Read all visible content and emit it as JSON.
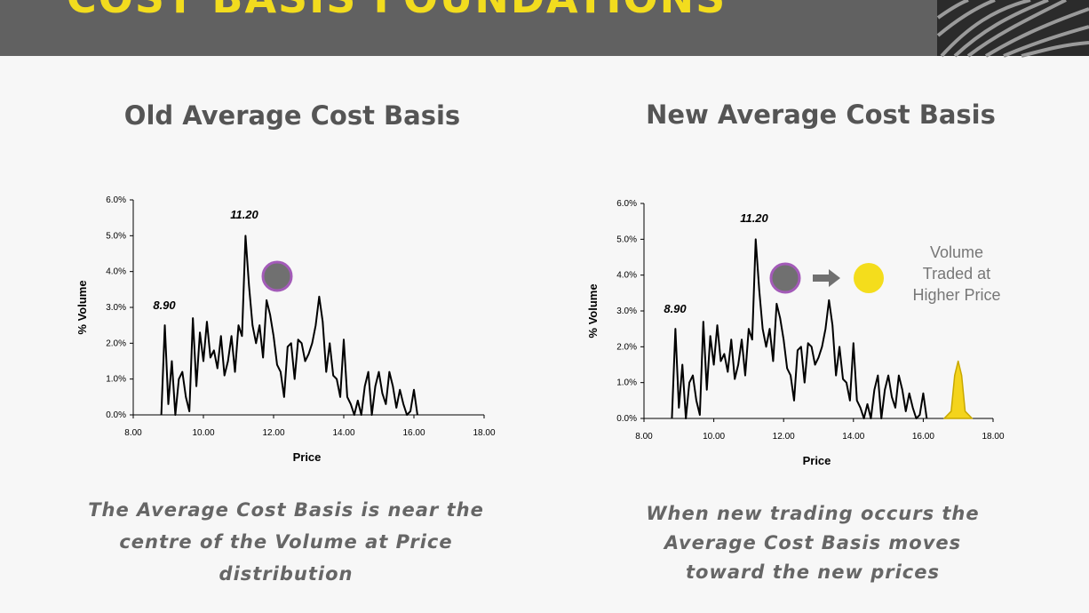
{
  "header": {
    "title": "COST BASIS FOUNDATIONS"
  },
  "chart_data": [
    {
      "type": "line",
      "title": "Old Average Cost Basis",
      "x_label": "Price",
      "y_label": "% Volume",
      "x": [
        8.8,
        8.9,
        9.0,
        9.1,
        9.2,
        9.3,
        9.4,
        9.5,
        9.6,
        9.7,
        9.8,
        9.9,
        10.0,
        10.1,
        10.2,
        10.3,
        10.4,
        10.5,
        10.6,
        10.7,
        10.8,
        10.9,
        11.0,
        11.1,
        11.2,
        11.3,
        11.4,
        11.5,
        11.6,
        11.7,
        11.8,
        11.9,
        12.0,
        12.1,
        12.2,
        12.3,
        12.4,
        12.5,
        12.6,
        12.7,
        12.8,
        12.9,
        13.0,
        13.1,
        13.2,
        13.3,
        13.4,
        13.5,
        13.6,
        13.7,
        13.8,
        13.9,
        14.0,
        14.1,
        14.2,
        14.3,
        14.4,
        14.5,
        14.6,
        14.7,
        14.8,
        14.9,
        15.0,
        15.1,
        15.2,
        15.3,
        15.4,
        15.5,
        15.6,
        15.7,
        15.8,
        15.9,
        16.0,
        16.1
      ],
      "series": [
        {
          "color": "#000000",
          "values": [
            0,
            2.5,
            0.3,
            1.5,
            0,
            1.0,
            1.2,
            0.5,
            0.1,
            2.7,
            0.8,
            2.3,
            1.5,
            2.6,
            1.6,
            1.8,
            1.3,
            2.2,
            1.1,
            1.5,
            2.2,
            1.2,
            2.5,
            2.2,
            5.0,
            3.6,
            2.5,
            2.0,
            2.5,
            1.6,
            3.2,
            2.8,
            2.2,
            1.4,
            1.2,
            0.5,
            1.9,
            2.0,
            1.0,
            2.1,
            2.0,
            1.5,
            1.7,
            2.0,
            2.5,
            3.3,
            2.6,
            1.2,
            2.0,
            1.1,
            1.0,
            0.5,
            2.1,
            0.5,
            0.3,
            0,
            0.4,
            0,
            0.8,
            1.2,
            0,
            0.8,
            1.2,
            0.6,
            0.3,
            1.2,
            0.8,
            0.2,
            0.7,
            0.3,
            0,
            0.1,
            0.7,
            0
          ]
        }
      ],
      "xlim": [
        8,
        18
      ],
      "ylim": [
        0,
        6
      ],
      "xticks": [
        {
          "value": 8,
          "label": "8.00"
        },
        {
          "value": 10,
          "label": "10.00"
        },
        {
          "value": 12,
          "label": "12.00"
        },
        {
          "value": 14,
          "label": "14.00"
        },
        {
          "value": 16,
          "label": "16.00"
        },
        {
          "value": 18,
          "label": "18.00"
        }
      ],
      "yticks": [
        {
          "value": 0,
          "label": "0.0%"
        },
        {
          "value": 1,
          "label": "1.0%"
        },
        {
          "value": 2,
          "label": "2.0%"
        },
        {
          "value": 3,
          "label": "3.0%"
        },
        {
          "value": 4,
          "label": "4.0%"
        },
        {
          "value": 5,
          "label": "5.0%"
        },
        {
          "value": 6,
          "label": "6.0%"
        }
      ],
      "annotations": [
        "11.20",
        "8.90"
      ],
      "caption": [
        "The Average Cost Basis is near the",
        "centre of the Volume at Price",
        "distribution"
      ]
    },
    {
      "type": "line",
      "title": "New Average Cost Basis",
      "x_label": "Price",
      "y_label": "% Volume",
      "x": [
        8.8,
        8.9,
        9.0,
        9.1,
        9.2,
        9.3,
        9.4,
        9.5,
        9.6,
        9.7,
        9.8,
        9.9,
        10.0,
        10.1,
        10.2,
        10.3,
        10.4,
        10.5,
        10.6,
        10.7,
        10.8,
        10.9,
        11.0,
        11.1,
        11.2,
        11.3,
        11.4,
        11.5,
        11.6,
        11.7,
        11.8,
        11.9,
        12.0,
        12.1,
        12.2,
        12.3,
        12.4,
        12.5,
        12.6,
        12.7,
        12.8,
        12.9,
        13.0,
        13.1,
        13.2,
        13.3,
        13.4,
        13.5,
        13.6,
        13.7,
        13.8,
        13.9,
        14.0,
        14.1,
        14.2,
        14.3,
        14.4,
        14.5,
        14.6,
        14.7,
        14.8,
        14.9,
        15.0,
        15.1,
        15.2,
        15.3,
        15.4,
        15.5,
        15.6,
        15.7,
        15.8,
        15.9,
        16.0,
        16.1
      ],
      "series": [
        {
          "color": "#000000",
          "values": [
            0,
            2.5,
            0.3,
            1.5,
            0,
            1.0,
            1.2,
            0.5,
            0.1,
            2.7,
            0.8,
            2.3,
            1.5,
            2.6,
            1.6,
            1.8,
            1.3,
            2.2,
            1.1,
            1.5,
            2.2,
            1.2,
            2.5,
            2.2,
            5.0,
            3.6,
            2.5,
            2.0,
            2.5,
            1.6,
            3.2,
            2.8,
            2.2,
            1.4,
            1.2,
            0.5,
            1.9,
            2.0,
            1.0,
            2.1,
            2.0,
            1.5,
            1.7,
            2.0,
            2.5,
            3.3,
            2.6,
            1.2,
            2.0,
            1.1,
            1.0,
            0.5,
            2.1,
            0.5,
            0.3,
            0,
            0.4,
            0,
            0.8,
            1.2,
            0,
            0.8,
            1.2,
            0.6,
            0.3,
            1.2,
            0.8,
            0.2,
            0.7,
            0.3,
            0,
            0.1,
            0.7,
            0
          ]
        },
        {
          "color": "#f4d41c",
          "x": [
            16.6,
            16.8,
            16.9,
            17.0,
            17.1,
            17.2,
            17.4
          ],
          "values": [
            0,
            0.2,
            1.2,
            1.6,
            1.2,
            0.2,
            0
          ]
        }
      ],
      "xlim": [
        8,
        18
      ],
      "ylim": [
        0,
        6
      ],
      "xticks": [
        {
          "value": 8,
          "label": "8.00"
        },
        {
          "value": 10,
          "label": "10.00"
        },
        {
          "value": 12,
          "label": "12.00"
        },
        {
          "value": 14,
          "label": "14.00"
        },
        {
          "value": 16,
          "label": "16.00"
        },
        {
          "value": 18,
          "label": "18.00"
        }
      ],
      "yticks": [
        {
          "value": 0,
          "label": "0.0%"
        },
        {
          "value": 1,
          "label": "1.0%"
        },
        {
          "value": 2,
          "label": "2.0%"
        },
        {
          "value": 3,
          "label": "3.0%"
        },
        {
          "value": 4,
          "label": "4.0%"
        },
        {
          "value": 5,
          "label": "5.0%"
        },
        {
          "value": 6,
          "label": "6.0%"
        }
      ],
      "annotations": [
        "11.20",
        "8.90"
      ],
      "note": [
        "Volume",
        "Traded at",
        "Higher Price"
      ],
      "caption": [
        "When new trading occurs the",
        "Average Cost Basis moves",
        "toward the new prices"
      ]
    }
  ]
}
